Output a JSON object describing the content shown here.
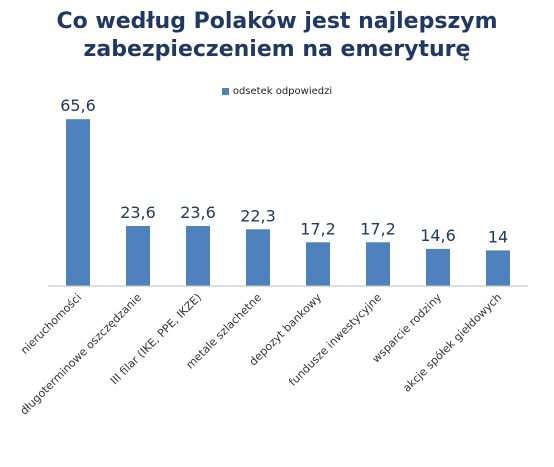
{
  "chart_data": {
    "type": "bar",
    "title_lines": [
      "Co według Polaków jest najlepszym",
      "zabezpieczeniem na emeryturę"
    ],
    "legend": "odsetek  odpowiedzi",
    "series": [
      {
        "name": "odsetek  odpowiedzi",
        "values": [
          65.6,
          23.6,
          23.6,
          22.3,
          17.2,
          17.2,
          14.6,
          14
        ]
      }
    ],
    "categories": [
      "nieruchomości",
      "długoterminowe  oszczędzanie",
      "III filar (IKE, PPE, IKZE)",
      "metale szlachetne",
      "depozyt bankowy",
      "fundusze inwestycyjne",
      "wsparcie rodziny",
      "akcje spółek giełdowych"
    ],
    "value_labels": [
      "65,6",
      "23,6",
      "23,6",
      "22,3",
      "17,2",
      "17,2",
      "14,6",
      "14"
    ],
    "ylim": [
      0,
      70
    ],
    "grid": false,
    "legend_position": "top-center",
    "colors": {
      "bar": "#4F81BD",
      "title": "#1F3864",
      "value_label": "#1F3864",
      "axis": "#BFBFBF"
    }
  }
}
